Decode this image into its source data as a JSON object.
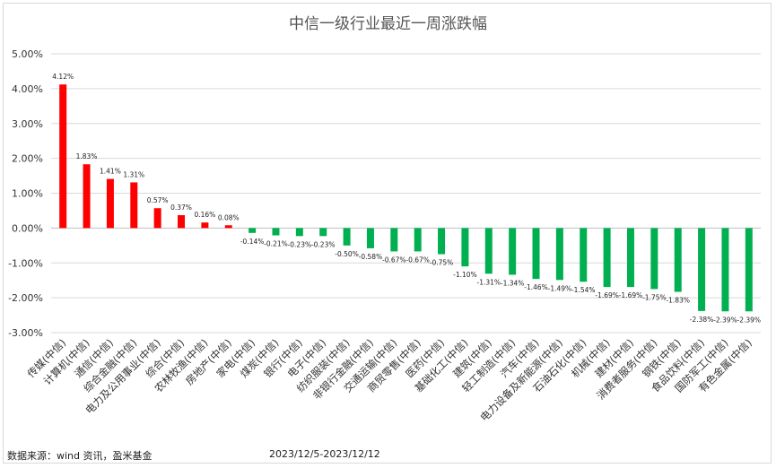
{
  "chart_data": {
    "type": "bar",
    "title": "中信一级行业最近一周涨跌幅",
    "categories": [
      "传媒(中信)",
      "计算机(中信)",
      "通信(中信)",
      "综合金融(中信)",
      "电力及公用事业(中信)",
      "综合(中信)",
      "农林牧渔(中信)",
      "房地产(中信)",
      "家电(中信)",
      "煤炭(中信)",
      "银行(中信)",
      "电子(中信)",
      "纺织服装(中信)",
      "非银行金融(中信)",
      "交通运输(中信)",
      "商贸零售(中信)",
      "医药(中信)",
      "基础化工(中信)",
      "建筑(中信)",
      "轻工制造(中信)",
      "汽车(中信)",
      "电力设备及新能源(中信)",
      "石油石化(中信)",
      "机械(中信)",
      "建材(中信)",
      "消费者服务(中信)",
      "钢铁(中信)",
      "食品饮料(中信)",
      "国防军工(中信)",
      "有色金属(中信)"
    ],
    "values": [
      4.12,
      1.83,
      1.41,
      1.31,
      0.57,
      0.37,
      0.16,
      0.08,
      -0.14,
      -0.21,
      -0.23,
      -0.23,
      -0.5,
      -0.58,
      -0.67,
      -0.67,
      -0.75,
      -1.1,
      -1.31,
      -1.34,
      -1.46,
      -1.49,
      -1.54,
      -1.69,
      -1.69,
      -1.75,
      -1.83,
      -2.38,
      -2.39,
      -2.39
    ],
    "value_labels": [
      "4.12%",
      "1.83%",
      "1.41%",
      "1.31%",
      "0.57%",
      "0.37%",
      "0.16%",
      "0.08%",
      "-0.14%",
      "-0.21%",
      "-0.23%",
      "-0.23%",
      "-0.50%",
      "-0.58%",
      "-0.67%",
      "-0.67%",
      "-0.75%",
      "-1.10%",
      "-1.31%",
      "-1.34%",
      "-1.46%",
      "-1.49%",
      "-1.54%",
      "-1.69%",
      "-1.69%",
      "-1.75%",
      "-1.83%",
      "-2.38%",
      "-2.39%",
      "-2.39%"
    ],
    "y_ticks": [
      "5.00%",
      "4.00%",
      "3.00%",
      "2.00%",
      "1.00%",
      "0.00%",
      "-1.00%",
      "-2.00%",
      "-3.00%"
    ],
    "ylim": [
      -3,
      5
    ],
    "grid": true,
    "colors": {
      "positive": "#ff0000",
      "negative": "#00b050",
      "grid": "#d9d9d9"
    }
  },
  "footer": {
    "source": "数据来源：wind 资讯，盈米基金",
    "period": "2023/12/5-2023/12/12"
  }
}
